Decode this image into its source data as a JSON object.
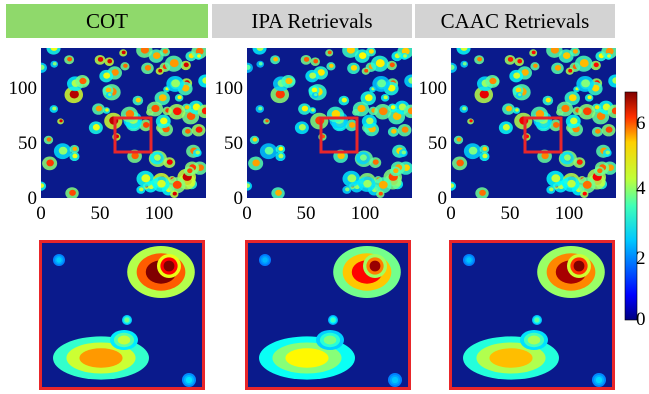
{
  "headers": [
    {
      "label": "COT",
      "bg": "#8fd96b"
    },
    {
      "label": "IPA Retrievals",
      "bg": "#d3d3d3"
    },
    {
      "label": "CAAC Retrievals",
      "bg": "#d3d3d3"
    }
  ],
  "axis": {
    "x_ticks": [
      "0",
      "50",
      "100"
    ],
    "y_ticks": [
      "0",
      "50",
      "100"
    ]
  },
  "colorbar": {
    "ticks": [
      "0",
      "2",
      "4",
      "6"
    ],
    "colormap": "jet"
  },
  "colors": {
    "highlight_box": "#e8262a",
    "field_background": "#0a1a8c"
  }
}
